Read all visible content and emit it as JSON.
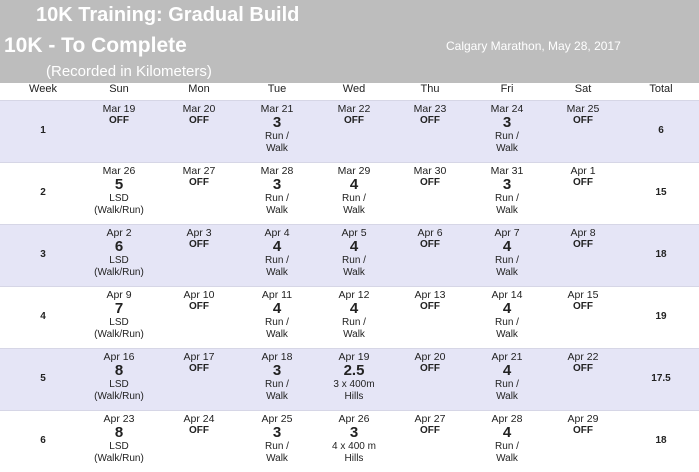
{
  "title": "10K Training: Gradual Build",
  "subtitle": "10K - To Complete",
  "event": "Calgary Marathon, May 28, 2017",
  "units_note": "(Recorded in Kilometers)",
  "headers": [
    "Week",
    "Sun",
    "Mon",
    "Tue",
    "Wed",
    "Thu",
    "Fri",
    "Sat",
    "Total"
  ],
  "weeks": [
    {
      "week": "1",
      "total": "6",
      "days": [
        {
          "date": "Mar 19",
          "value": "OFF",
          "note": [
            "",
            ""
          ]
        },
        {
          "date": "Mar 20",
          "value": "OFF",
          "note": [
            "",
            ""
          ]
        },
        {
          "date": "Mar 21",
          "value": "3",
          "note": [
            "Run /",
            "Walk"
          ]
        },
        {
          "date": "Mar 22",
          "value": "OFF",
          "note": [
            "",
            ""
          ]
        },
        {
          "date": "Mar 23",
          "value": "OFF",
          "note": [
            "",
            ""
          ]
        },
        {
          "date": "Mar 24",
          "value": "3",
          "note": [
            "Run /",
            "Walk"
          ]
        },
        {
          "date": "Mar 25",
          "value": "OFF",
          "note": [
            "",
            ""
          ]
        }
      ]
    },
    {
      "week": "2",
      "total": "15",
      "days": [
        {
          "date": "Mar 26",
          "value": "5",
          "note": [
            "LSD",
            "(Walk/Run)"
          ]
        },
        {
          "date": "Mar 27",
          "value": "OFF",
          "note": [
            "",
            ""
          ]
        },
        {
          "date": "Mar 28",
          "value": "3",
          "note": [
            "Run /",
            "Walk"
          ]
        },
        {
          "date": "Mar 29",
          "value": "4",
          "note": [
            "Run /",
            "Walk"
          ]
        },
        {
          "date": "Mar 30",
          "value": "OFF",
          "note": [
            "",
            ""
          ]
        },
        {
          "date": "Mar 31",
          "value": "3",
          "note": [
            "Run /",
            "Walk"
          ]
        },
        {
          "date": "Apr 1",
          "value": "OFF",
          "note": [
            "",
            ""
          ]
        }
      ]
    },
    {
      "week": "3",
      "total": "18",
      "days": [
        {
          "date": "Apr 2",
          "value": "6",
          "note": [
            "LSD",
            "(Walk/Run)"
          ]
        },
        {
          "date": "Apr 3",
          "value": "OFF",
          "note": [
            "",
            ""
          ]
        },
        {
          "date": "Apr 4",
          "value": "4",
          "note": [
            "Run /",
            "Walk"
          ]
        },
        {
          "date": "Apr 5",
          "value": "4",
          "note": [
            "Run /",
            "Walk"
          ]
        },
        {
          "date": "Apr 6",
          "value": "OFF",
          "note": [
            "",
            ""
          ]
        },
        {
          "date": "Apr 7",
          "value": "4",
          "note": [
            "Run /",
            "Walk"
          ]
        },
        {
          "date": "Apr 8",
          "value": "OFF",
          "note": [
            "",
            ""
          ]
        }
      ]
    },
    {
      "week": "4",
      "total": "19",
      "days": [
        {
          "date": "Apr 9",
          "value": "7",
          "note": [
            "LSD",
            "(Walk/Run)"
          ]
        },
        {
          "date": "Apr 10",
          "value": "OFF",
          "note": [
            "",
            ""
          ]
        },
        {
          "date": "Apr 11",
          "value": "4",
          "note": [
            "Run /",
            "Walk"
          ]
        },
        {
          "date": "Apr 12",
          "value": "4",
          "note": [
            "Run /",
            "Walk"
          ]
        },
        {
          "date": "Apr 13",
          "value": "OFF",
          "note": [
            "",
            ""
          ]
        },
        {
          "date": "Apr 14",
          "value": "4",
          "note": [
            "Run /",
            "Walk"
          ]
        },
        {
          "date": "Apr 15",
          "value": "OFF",
          "note": [
            "",
            ""
          ]
        }
      ]
    },
    {
      "week": "5",
      "total": "17.5",
      "days": [
        {
          "date": "Apr 16",
          "value": "8",
          "note": [
            "LSD",
            "(Walk/Run)"
          ]
        },
        {
          "date": "Apr 17",
          "value": "OFF",
          "note": [
            "",
            ""
          ]
        },
        {
          "date": "Apr 18",
          "value": "3",
          "note": [
            "Run /",
            "Walk"
          ]
        },
        {
          "date": "Apr 19",
          "value": "2.5",
          "note": [
            "3 x 400m",
            "Hills"
          ]
        },
        {
          "date": "Apr 20",
          "value": "OFF",
          "note": [
            "",
            ""
          ]
        },
        {
          "date": "Apr 21",
          "value": "4",
          "note": [
            "Run /",
            "Walk"
          ]
        },
        {
          "date": "Apr 22",
          "value": "OFF",
          "note": [
            "",
            ""
          ]
        }
      ]
    },
    {
      "week": "6",
      "total": "18",
      "days": [
        {
          "date": "Apr 23",
          "value": "8",
          "note": [
            "LSD",
            "(Walk/Run)"
          ]
        },
        {
          "date": "Apr 24",
          "value": "OFF",
          "note": [
            "",
            ""
          ]
        },
        {
          "date": "Apr 25",
          "value": "3",
          "note": [
            "Run /",
            "Walk"
          ]
        },
        {
          "date": "Apr 26",
          "value": "3",
          "note": [
            "4 x 400 m",
            "Hills"
          ]
        },
        {
          "date": "Apr 27",
          "value": "OFF",
          "note": [
            "",
            ""
          ]
        },
        {
          "date": "Apr 28",
          "value": "4",
          "note": [
            "Run /",
            "Walk"
          ]
        },
        {
          "date": "Apr 29",
          "value": "OFF",
          "note": [
            "",
            ""
          ]
        }
      ]
    }
  ]
}
